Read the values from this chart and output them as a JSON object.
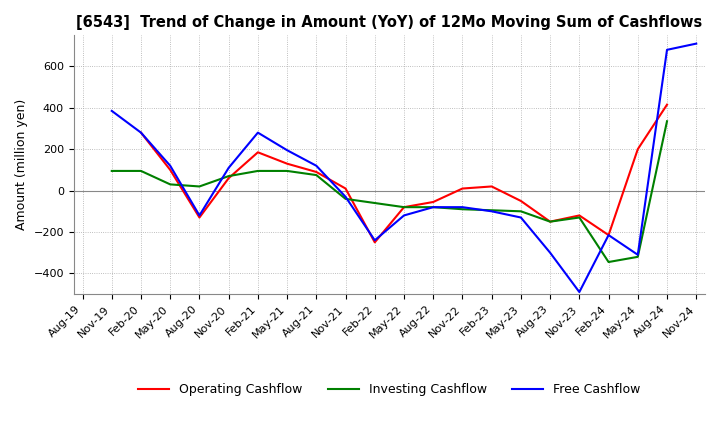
{
  "title": "[6543]  Trend of Change in Amount (YoY) of 12Mo Moving Sum of Cashflows",
  "ylabel": "Amount (million yen)",
  "x_labels": [
    "Aug-19",
    "Nov-19",
    "Feb-20",
    "May-20",
    "Aug-20",
    "Nov-20",
    "Feb-21",
    "May-21",
    "Aug-21",
    "Nov-21",
    "Feb-22",
    "May-22",
    "Aug-22",
    "Nov-22",
    "Feb-23",
    "May-23",
    "Aug-23",
    "Nov-23",
    "Feb-24",
    "May-24",
    "Aug-24",
    "Nov-24"
  ],
  "operating": [
    null,
    null,
    280,
    100,
    -130,
    60,
    185,
    130,
    90,
    10,
    -250,
    -80,
    -55,
    10,
    20,
    -50,
    -150,
    -120,
    -215,
    200,
    415,
    null
  ],
  "investing": [
    null,
    95,
    95,
    30,
    20,
    70,
    95,
    95,
    75,
    -40,
    -60,
    -80,
    -80,
    -90,
    -95,
    -100,
    -150,
    -130,
    -345,
    -320,
    335,
    null
  ],
  "free": [
    null,
    385,
    280,
    120,
    -120,
    110,
    280,
    195,
    120,
    -30,
    -240,
    -120,
    -80,
    -80,
    -100,
    -130,
    -300,
    -490,
    -215,
    -310,
    680,
    710
  ],
  "operating_color": "#ff0000",
  "investing_color": "#008000",
  "free_color": "#0000ff",
  "ylim": [
    -500,
    750
  ],
  "yticks": [
    -400,
    -200,
    0,
    200,
    400,
    600
  ],
  "background_color": "#ffffff",
  "grid_color": "#aaaaaa"
}
